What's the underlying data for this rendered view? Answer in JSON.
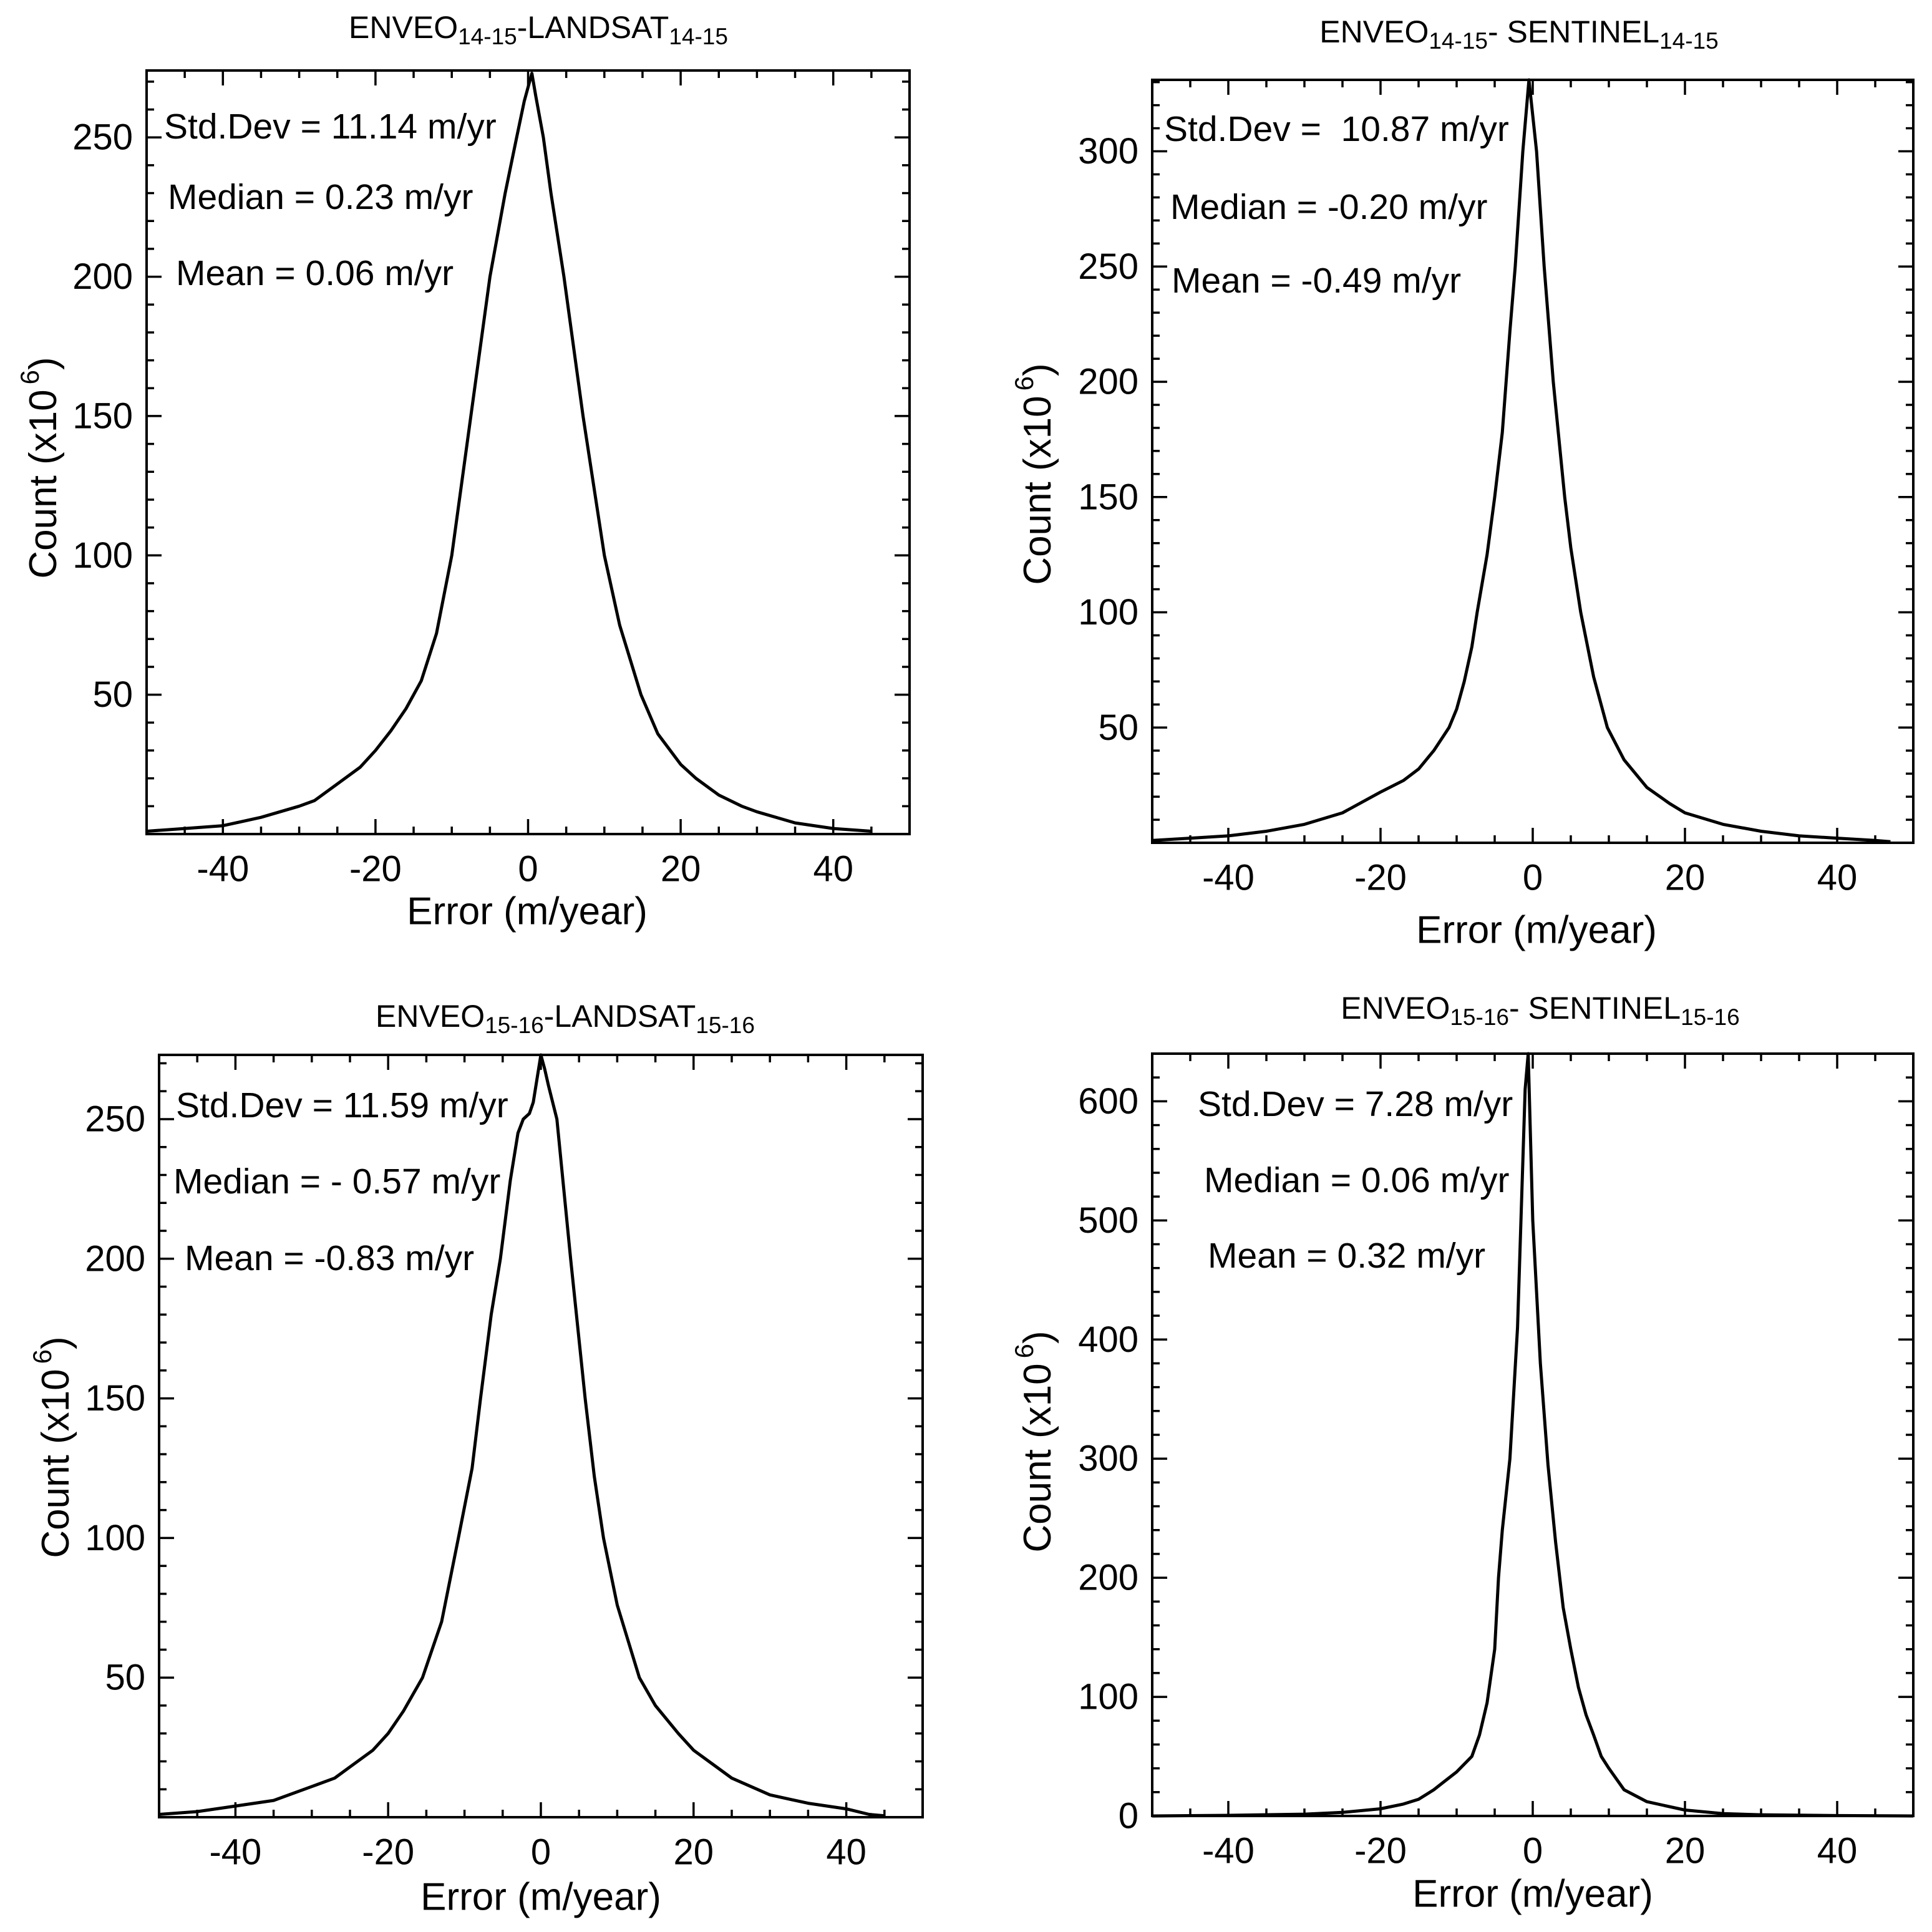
{
  "colors": {
    "line": "#000000",
    "axis": "#000000",
    "background": "#ffffff"
  },
  "chart_data": [
    {
      "type": "line",
      "title": [
        "ENVEO",
        "14-15",
        "-LANDSAT",
        "14-15"
      ],
      "xlabel": "Error (m/year)",
      "ylabel": "Count (x10",
      "ylabel_sup": "6",
      "ylabel_end": ")",
      "xlim": [
        -50,
        50
      ],
      "ylim": [
        0,
        274
      ],
      "xticks": [
        -40,
        -20,
        0,
        20,
        40
      ],
      "yticks": [
        50,
        100,
        150,
        200,
        250
      ],
      "x_minor_step": 5,
      "y_minor_step": 10,
      "grid": false,
      "annotations": [
        "Std.Dev = 11.14 m/yr",
        "Median = 0.23 m/yr",
        "Mean = 0.06 m/yr"
      ],
      "x": [
        -50,
        -45,
        -40,
        -35,
        -30,
        -28,
        -25,
        -22,
        -20,
        -18,
        -16,
        -14,
        -12,
        -10,
        -7.5,
        -5,
        -3,
        -1.5,
        -0.5,
        0.5,
        1,
        2,
        3,
        4.7,
        7.2,
        10,
        12,
        14.8,
        17,
        20,
        22,
        25,
        28,
        30,
        35,
        40,
        45
      ],
      "y": [
        1,
        2,
        3,
        6,
        10,
        12,
        18,
        24,
        30,
        37,
        45,
        55,
        72,
        100,
        150,
        200,
        230,
        250,
        263,
        273,
        265,
        250,
        230,
        200,
        150,
        100,
        75,
        50,
        36,
        25,
        20,
        14,
        10,
        8,
        4,
        2,
        1
      ]
    },
    {
      "type": "line",
      "title": [
        "ENVEO",
        "14-15",
        "- SENTINEL",
        "14-15"
      ],
      "xlabel": "Error (m/year)",
      "ylabel": "Count (x10",
      "ylabel_sup": "6",
      "ylabel_end": ")",
      "xlim": [
        -50,
        50
      ],
      "ylim": [
        0,
        331
      ],
      "xticks": [
        -40,
        -20,
        0,
        20,
        40
      ],
      "yticks": [
        50,
        100,
        150,
        200,
        250,
        300
      ],
      "x_minor_step": 5,
      "y_minor_step": 10,
      "grid": false,
      "annotations": [
        "Std.Dev =  10.87 m/yr",
        "Median = -0.20 m/yr",
        "Mean = -0.49 m/yr"
      ],
      "x": [
        -50,
        -45,
        -40,
        -35,
        -30,
        -25,
        -20,
        -17,
        -15,
        -13,
        -11,
        -10,
        -9,
        -8,
        -7.3,
        -6,
        -5,
        -4,
        -3.5,
        -3,
        -2.3,
        -1.3,
        -0.5,
        0.5,
        1.5,
        2.7,
        4.2,
        5,
        6.3,
        8,
        9.8,
        12,
        15,
        18,
        20,
        25,
        30,
        35,
        40,
        45,
        47
      ],
      "y": [
        1,
        2,
        3,
        5,
        8,
        13,
        22,
        27,
        32,
        40,
        50,
        58,
        70,
        85,
        100,
        125,
        150,
        178,
        200,
        222,
        250,
        300,
        331,
        300,
        250,
        200,
        150,
        128,
        100,
        72,
        50,
        36,
        24,
        17,
        13,
        8,
        5,
        3,
        2,
        1,
        0.5
      ]
    },
    {
      "type": "line",
      "title": [
        "ENVEO",
        "15-16",
        "-LANDSAT",
        "15-16"
      ],
      "xlabel": "Error (m/year)",
      "ylabel": "Count (x10",
      "ylabel_sup": "6",
      "ylabel_end": ")",
      "xlim": [
        -50,
        50
      ],
      "ylim": [
        0,
        273
      ],
      "xticks": [
        -40,
        -20,
        0,
        20,
        40
      ],
      "yticks": [
        50,
        100,
        150,
        200,
        250
      ],
      "x_minor_step": 5,
      "y_minor_step": 10,
      "grid": false,
      "annotations": [
        "Std.Dev = 11.59 m/yr",
        "Median = - 0.57 m/yr",
        "Mean = -0.83 m/yr"
      ],
      "x": [
        -50,
        -45,
        -40,
        -35,
        -30,
        -27,
        -25,
        -22,
        -20,
        -18,
        -15.5,
        -13,
        -10.8,
        -9,
        -7.9,
        -6.5,
        -5.3,
        -4,
        -3,
        -2.3,
        -1.5,
        -1,
        0,
        0.5,
        1,
        2.1,
        3.9,
        5.8,
        7,
        8.2,
        10,
        12.9,
        15,
        18,
        20,
        25,
        30,
        35,
        40,
        43,
        45
      ],
      "y": [
        1,
        2,
        4,
        6,
        11,
        14,
        18,
        24,
        30,
        38,
        50,
        70,
        100,
        125,
        150,
        180,
        200,
        228,
        245,
        250,
        252,
        256,
        273,
        268,
        262,
        250,
        200,
        150,
        122,
        100,
        76,
        50,
        40,
        30,
        24,
        14,
        8,
        5,
        3,
        1,
        0.5
      ]
    },
    {
      "type": "line",
      "title": [
        "ENVEO",
        "15-16",
        "- SENTINEL",
        "15-16"
      ],
      "xlabel": "Error (m/year)",
      "ylabel": "Count (x10",
      "ylabel_sup": "6",
      "ylabel_end": ")",
      "xlim": [
        -50,
        50
      ],
      "ylim": [
        0,
        640
      ],
      "xticks": [
        -40,
        -20,
        0,
        20,
        40
      ],
      "yticks": [
        0,
        100,
        200,
        300,
        400,
        500,
        600
      ],
      "x_minor_step": 5,
      "y_minor_step": 20,
      "grid": false,
      "annotations": [
        "Std.Dev = 7.28 m/yr",
        "Median = 0.06 m/yr",
        "Mean = 0.32 m/yr"
      ],
      "x": [
        -50,
        -40,
        -30,
        -25,
        -20,
        -17,
        -15,
        -13,
        -12,
        -10,
        -8,
        -7,
        -6,
        -5,
        -4.5,
        -4,
        -3,
        -2,
        -1.5,
        -1,
        -0.6,
        0,
        1,
        2,
        3,
        4,
        5,
        6,
        7,
        8,
        9,
        10,
        12,
        15,
        20,
        25,
        30,
        40,
        50
      ],
      "y": [
        0,
        0.5,
        1.5,
        3,
        6,
        10,
        14,
        22,
        27,
        37,
        50,
        68,
        95,
        140,
        200,
        240,
        300,
        410,
        510,
        610,
        640,
        500,
        380,
        295,
        230,
        175,
        140,
        108,
        85,
        68,
        50,
        40,
        22,
        12,
        5,
        2,
        1,
        0.3,
        0
      ]
    }
  ]
}
